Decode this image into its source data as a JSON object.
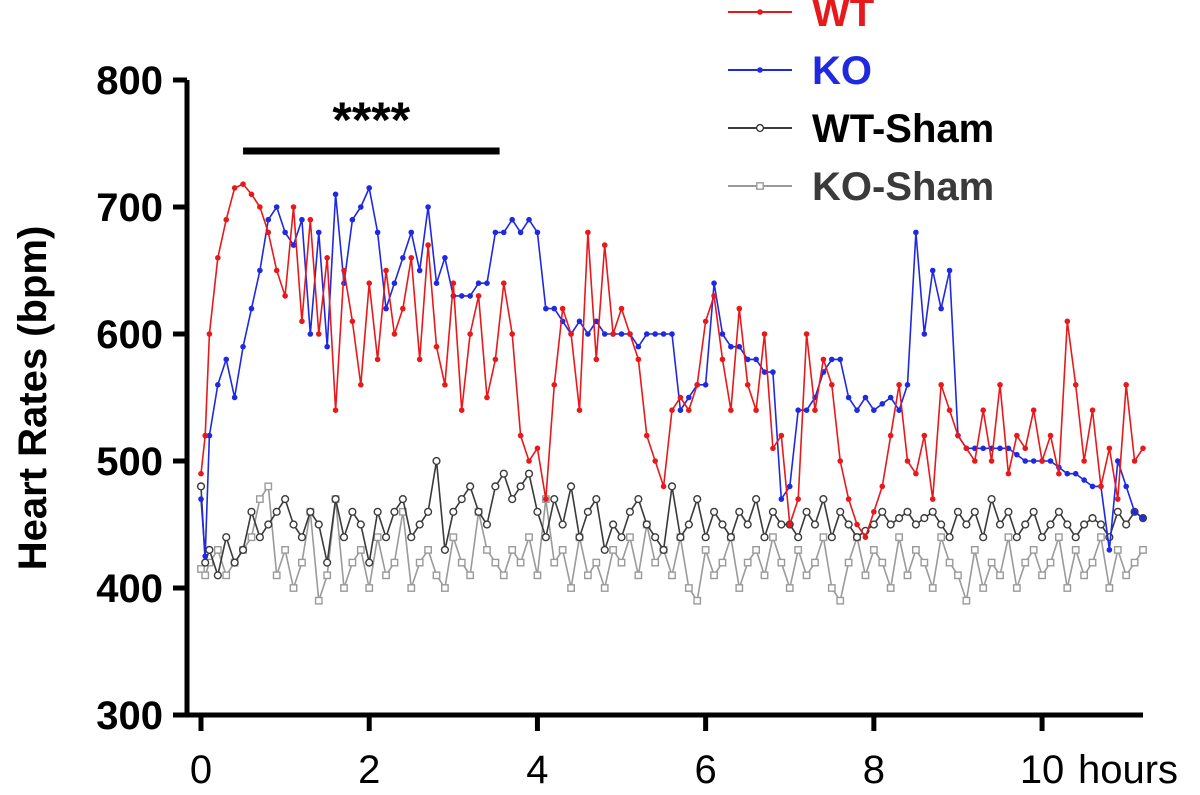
{
  "chart_data": {
    "type": "line",
    "title": "",
    "ylabel": "Heart Rates (bpm)",
    "xlabel": "",
    "x_unit_label": "hours",
    "xlim": [
      0,
      11.2
    ],
    "ylim": [
      300,
      800
    ],
    "xticks": [
      0,
      2,
      4,
      6,
      8,
      10
    ],
    "yticks": [
      300,
      400,
      500,
      600,
      700,
      800
    ],
    "x_tick_labels": [
      "0",
      "2",
      "4",
      "6",
      "8",
      "10"
    ],
    "y_tick_labels": [
      "300",
      "400",
      "500",
      "600",
      "700",
      "800"
    ],
    "grid": false,
    "legend_position": "top-right",
    "significance": {
      "label": "****",
      "x_start": 0.5,
      "x_end": 3.55,
      "y": 752
    },
    "series": [
      {
        "name": "WT",
        "color": "#e8191b",
        "marker": "filled-dot",
        "x": [
          0.0,
          0.05,
          0.1,
          0.2,
          0.3,
          0.4,
          0.5,
          0.6,
          0.7,
          0.8,
          0.9,
          1.0,
          1.1,
          1.2,
          1.3,
          1.4,
          1.5,
          1.6,
          1.7,
          1.8,
          1.9,
          2.0,
          2.1,
          2.2,
          2.3,
          2.4,
          2.5,
          2.6,
          2.7,
          2.8,
          2.9,
          3.0,
          3.1,
          3.2,
          3.3,
          3.4,
          3.5,
          3.6,
          3.7,
          3.8,
          3.9,
          4.0,
          4.1,
          4.2,
          4.3,
          4.4,
          4.5,
          4.6,
          4.7,
          4.8,
          4.9,
          5.0,
          5.1,
          5.2,
          5.3,
          5.4,
          5.5,
          5.6,
          5.7,
          5.8,
          5.9,
          6.0,
          6.1,
          6.2,
          6.3,
          6.4,
          6.5,
          6.6,
          6.7,
          6.8,
          6.9,
          7.0,
          7.1,
          7.2,
          7.3,
          7.4,
          7.5,
          7.6,
          7.7,
          7.8,
          7.9,
          8.0,
          8.1,
          8.2,
          8.3,
          8.4,
          8.5,
          8.6,
          8.7,
          8.8,
          8.9,
          9.0,
          9.1,
          9.2,
          9.3,
          9.4,
          9.5,
          9.6,
          9.7,
          9.8,
          9.9,
          10.0,
          10.1,
          10.2,
          10.3,
          10.4,
          10.5,
          10.6,
          10.7,
          10.8,
          10.9,
          11.0,
          11.1,
          11.2
        ],
        "values": [
          490,
          520,
          600,
          660,
          690,
          715,
          718,
          710,
          700,
          680,
          650,
          630,
          700,
          610,
          690,
          600,
          660,
          540,
          650,
          610,
          560,
          640,
          580,
          650,
          600,
          620,
          660,
          580,
          670,
          590,
          560,
          640,
          540,
          600,
          630,
          550,
          580,
          640,
          600,
          520,
          500,
          510,
          470,
          560,
          620,
          600,
          540,
          680,
          580,
          670,
          600,
          620,
          600,
          580,
          520,
          500,
          480,
          540,
          550,
          540,
          560,
          610,
          630,
          580,
          540,
          620,
          560,
          540,
          600,
          510,
          520,
          450,
          470,
          600,
          540,
          580,
          560,
          500,
          470,
          450,
          440,
          460,
          480,
          520,
          560,
          500,
          490,
          520,
          470,
          560,
          540,
          520,
          510,
          500,
          540,
          500,
          560,
          490,
          520,
          510,
          540,
          500,
          520,
          490,
          610,
          560,
          500,
          540,
          480,
          510,
          470,
          560,
          500,
          510
        ]
      },
      {
        "name": "KO",
        "color": "#1f29e0",
        "marker": "filled-dot",
        "x": [
          0.0,
          0.05,
          0.1,
          0.2,
          0.3,
          0.4,
          0.5,
          0.6,
          0.7,
          0.8,
          0.9,
          1.0,
          1.1,
          1.2,
          1.3,
          1.4,
          1.5,
          1.6,
          1.7,
          1.8,
          1.9,
          2.0,
          2.1,
          2.2,
          2.3,
          2.4,
          2.5,
          2.6,
          2.7,
          2.8,
          2.9,
          3.0,
          3.1,
          3.2,
          3.3,
          3.4,
          3.5,
          3.6,
          3.7,
          3.8,
          3.9,
          4.0,
          4.1,
          4.2,
          4.3,
          4.4,
          4.5,
          4.6,
          4.7,
          4.8,
          4.9,
          5.0,
          5.1,
          5.2,
          5.3,
          5.4,
          5.5,
          5.6,
          5.7,
          5.8,
          5.9,
          6.0,
          6.1,
          6.2,
          6.3,
          6.4,
          6.5,
          6.6,
          6.7,
          6.8,
          6.9,
          7.0,
          7.1,
          7.2,
          7.3,
          7.4,
          7.5,
          7.6,
          7.7,
          7.8,
          7.9,
          8.0,
          8.1,
          8.2,
          8.3,
          8.4,
          8.5,
          8.6,
          8.7,
          8.8,
          8.9,
          9.0,
          9.1,
          9.2,
          9.3,
          9.4,
          9.5,
          9.6,
          9.7,
          9.8,
          9.9,
          10.0,
          10.1,
          10.2,
          10.3,
          10.4,
          10.5,
          10.6,
          10.7,
          10.8,
          10.9,
          11.0,
          11.1,
          11.2
        ],
        "values": [
          470,
          425,
          520,
          560,
          580,
          550,
          590,
          620,
          650,
          690,
          700,
          680,
          670,
          690,
          600,
          680,
          590,
          710,
          640,
          690,
          700,
          715,
          680,
          620,
          640,
          660,
          680,
          650,
          700,
          640,
          660,
          630,
          630,
          630,
          640,
          640,
          680,
          680,
          690,
          680,
          690,
          680,
          620,
          620,
          610,
          600,
          610,
          600,
          610,
          600,
          600,
          600,
          600,
          590,
          600,
          600,
          600,
          600,
          540,
          550,
          560,
          560,
          640,
          600,
          590,
          590,
          580,
          580,
          570,
          570,
          470,
          480,
          540,
          540,
          550,
          570,
          580,
          580,
          550,
          540,
          550,
          540,
          545,
          550,
          540,
          560,
          680,
          600,
          650,
          620,
          650,
          520,
          510,
          510,
          510,
          510,
          510,
          510,
          505,
          500,
          500,
          500,
          500,
          495,
          490,
          490,
          485,
          480,
          480,
          430,
          500,
          480,
          460,
          455
        ]
      },
      {
        "name": "WT-Sham",
        "color": "#3a3a3a",
        "marker": "open-circle",
        "x": [
          0.0,
          0.05,
          0.1,
          0.2,
          0.3,
          0.4,
          0.5,
          0.6,
          0.7,
          0.8,
          0.9,
          1.0,
          1.1,
          1.2,
          1.3,
          1.4,
          1.5,
          1.6,
          1.7,
          1.8,
          1.9,
          2.0,
          2.1,
          2.2,
          2.3,
          2.4,
          2.5,
          2.6,
          2.7,
          2.8,
          2.9,
          3.0,
          3.1,
          3.2,
          3.3,
          3.4,
          3.5,
          3.6,
          3.7,
          3.8,
          3.9,
          4.0,
          4.1,
          4.2,
          4.3,
          4.4,
          4.5,
          4.6,
          4.7,
          4.8,
          4.9,
          5.0,
          5.1,
          5.2,
          5.3,
          5.4,
          5.5,
          5.6,
          5.7,
          5.8,
          5.9,
          6.0,
          6.1,
          6.2,
          6.3,
          6.4,
          6.5,
          6.6,
          6.7,
          6.8,
          6.9,
          7.0,
          7.1,
          7.2,
          7.3,
          7.4,
          7.5,
          7.6,
          7.7,
          7.8,
          7.9,
          8.0,
          8.1,
          8.2,
          8.3,
          8.4,
          8.5,
          8.6,
          8.7,
          8.8,
          8.9,
          9.0,
          9.1,
          9.2,
          9.3,
          9.4,
          9.5,
          9.6,
          9.7,
          9.8,
          9.9,
          10.0,
          10.1,
          10.2,
          10.3,
          10.4,
          10.5,
          10.6,
          10.7,
          10.8,
          10.9,
          11.0,
          11.1,
          11.2
        ],
        "values": [
          480,
          420,
          430,
          410,
          440,
          420,
          430,
          460,
          440,
          450,
          460,
          470,
          450,
          440,
          460,
          450,
          420,
          470,
          440,
          460,
          450,
          420,
          460,
          440,
          460,
          470,
          440,
          450,
          460,
          500,
          430,
          460,
          470,
          480,
          460,
          450,
          480,
          490,
          470,
          480,
          490,
          460,
          440,
          470,
          450,
          480,
          440,
          460,
          470,
          430,
          450,
          440,
          460,
          470,
          450,
          440,
          430,
          480,
          440,
          450,
          470,
          440,
          460,
          450,
          440,
          460,
          450,
          470,
          440,
          460,
          450,
          450,
          440,
          460,
          450,
          470,
          440,
          460,
          450,
          440,
          445,
          450,
          460,
          450,
          455,
          460,
          450,
          455,
          460,
          450,
          440,
          460,
          450,
          460,
          440,
          470,
          450,
          460,
          440,
          450,
          460,
          440,
          450,
          460,
          450,
          440,
          450,
          455,
          450,
          440,
          460,
          450,
          460,
          455
        ]
      },
      {
        "name": "KO-Sham",
        "color": "#9a9a9a",
        "marker": "open-square",
        "x": [
          0.0,
          0.05,
          0.1,
          0.2,
          0.3,
          0.4,
          0.5,
          0.6,
          0.7,
          0.8,
          0.9,
          1.0,
          1.1,
          1.2,
          1.3,
          1.4,
          1.5,
          1.6,
          1.7,
          1.8,
          1.9,
          2.0,
          2.1,
          2.2,
          2.3,
          2.4,
          2.5,
          2.6,
          2.7,
          2.8,
          2.9,
          3.0,
          3.1,
          3.2,
          3.3,
          3.4,
          3.5,
          3.6,
          3.7,
          3.8,
          3.9,
          4.0,
          4.1,
          4.2,
          4.3,
          4.4,
          4.5,
          4.6,
          4.7,
          4.8,
          4.9,
          5.0,
          5.1,
          5.2,
          5.3,
          5.4,
          5.5,
          5.6,
          5.7,
          5.8,
          5.9,
          6.0,
          6.1,
          6.2,
          6.3,
          6.4,
          6.5,
          6.6,
          6.7,
          6.8,
          6.9,
          7.0,
          7.1,
          7.2,
          7.3,
          7.4,
          7.5,
          7.6,
          7.7,
          7.8,
          7.9,
          8.0,
          8.1,
          8.2,
          8.3,
          8.4,
          8.5,
          8.6,
          8.7,
          8.8,
          8.9,
          9.0,
          9.1,
          9.2,
          9.3,
          9.4,
          9.5,
          9.6,
          9.7,
          9.8,
          9.9,
          10.0,
          10.1,
          10.2,
          10.3,
          10.4,
          10.5,
          10.6,
          10.7,
          10.8,
          10.9,
          11.0,
          11.1,
          11.2
        ],
        "values": [
          415,
          410,
          420,
          430,
          410,
          420,
          430,
          440,
          470,
          480,
          410,
          430,
          400,
          420,
          460,
          390,
          410,
          470,
          400,
          420,
          430,
          400,
          440,
          410,
          420,
          460,
          400,
          420,
          430,
          410,
          400,
          440,
          420,
          410,
          460,
          430,
          420,
          410,
          430,
          420,
          440,
          410,
          470,
          420,
          430,
          400,
          440,
          410,
          420,
          400,
          430,
          420,
          440,
          410,
          450,
          420,
          430,
          410,
          440,
          400,
          390,
          430,
          410,
          420,
          440,
          400,
          420,
          430,
          410,
          440,
          420,
          400,
          430,
          410,
          420,
          440,
          400,
          390,
          420,
          440,
          410,
          430,
          420,
          400,
          440,
          410,
          430,
          420,
          400,
          440,
          420,
          410,
          390,
          430,
          400,
          420,
          410,
          440,
          400,
          420,
          430,
          410,
          420,
          440,
          400,
          430,
          410,
          420,
          440,
          400,
          430,
          410,
          420,
          430
        ]
      }
    ]
  }
}
